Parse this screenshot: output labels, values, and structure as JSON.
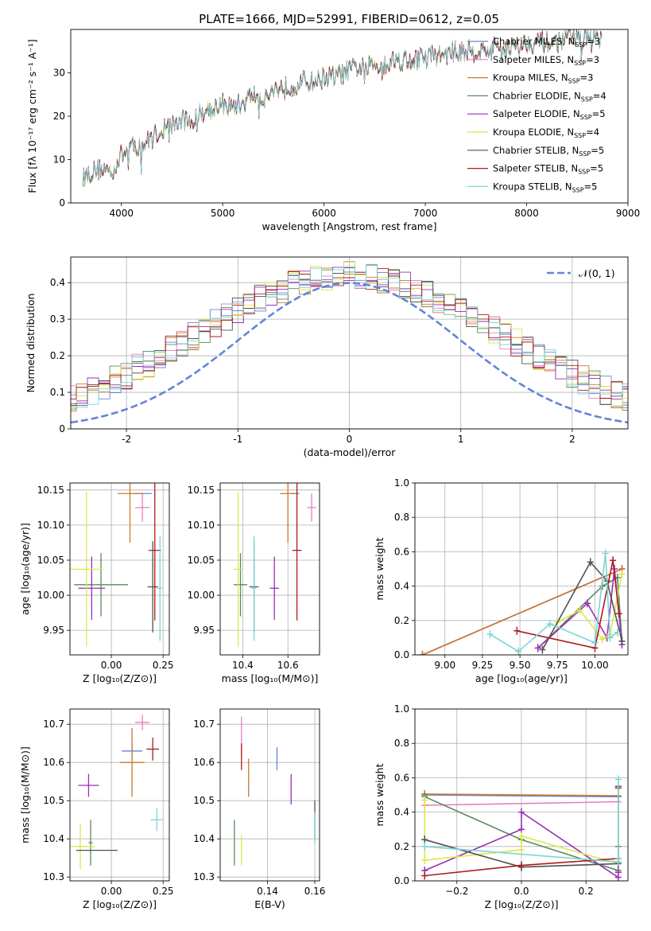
{
  "chart_data": [
    {
      "id": "spectrum",
      "type": "line",
      "title": "PLATE=1666, MJD=52991, FIBERID=0612, z=0.05",
      "xlabel": "wavelength [Angstrom, rest frame]",
      "ylabel": "Flux [fλ 10⁻¹⁷ erg cm⁻² s⁻¹ A⁻¹]",
      "xlim": [
        3500,
        9000
      ],
      "ylim": [
        0,
        40
      ],
      "xticks": [
        4000,
        5000,
        6000,
        7000,
        8000,
        9000
      ],
      "yticks": [
        0,
        10,
        20,
        30
      ],
      "legend_position": "top-right",
      "grid": false,
      "spectrum_shape": {
        "x": [
          3620,
          3700,
          3800,
          3900,
          4000,
          4100,
          4200,
          4300,
          4400,
          4500,
          4600,
          4700,
          4800,
          4900,
          5000,
          5100,
          5200,
          5300,
          5400,
          5500,
          5600,
          5700,
          5800,
          5900,
          6000,
          6100,
          6200,
          6300,
          6400,
          6500,
          6600,
          6700,
          6800,
          6900,
          7000,
          7100,
          7200,
          7300,
          7400,
          7500,
          7600,
          7700,
          7800,
          7900,
          8000,
          8100,
          8200,
          8300,
          8400,
          8500,
          8600,
          8740
        ],
        "y": [
          6,
          7,
          8,
          7,
          11,
          13,
          13,
          15,
          17,
          18,
          19,
          19,
          21,
          22,
          23,
          22,
          23,
          25,
          24,
          26,
          27,
          27,
          28,
          28,
          29,
          29,
          30,
          31,
          31,
          32,
          32,
          33,
          33,
          33,
          34,
          34,
          34,
          35,
          35,
          35,
          35,
          36,
          36,
          36,
          37,
          37,
          37,
          37,
          38,
          38,
          38,
          38
        ]
      },
      "series": [
        {
          "name": "Chabrier MILES, N",
          "sub": "SSP",
          "count": "=3",
          "color": "#6185d8"
        },
        {
          "name": "Salpeter MILES, N",
          "sub": "SSP",
          "count": "=3",
          "color": "#e87fbf"
        },
        {
          "name": "Kroupa MILES, N",
          "sub": "SSP",
          "count": "=3",
          "color": "#c87a2d"
        },
        {
          "name": "Chabrier ELODIE, N",
          "sub": "SSP",
          "count": "=4",
          "color": "#5a8a5e"
        },
        {
          "name": "Salpeter ELODIE, N",
          "sub": "SSP",
          "count": "=5",
          "color": "#9a2fb7"
        },
        {
          "name": "Kroupa ELODIE, N",
          "sub": "SSP",
          "count": "=4",
          "color": "#dde84a"
        },
        {
          "name": "Chabrier STELIB, N",
          "sub": "SSP",
          "count": "=5",
          "color": "#505050"
        },
        {
          "name": "Salpeter STELIB, N",
          "sub": "SSP",
          "count": "=5",
          "color": "#b01a1a"
        },
        {
          "name": "Kroupa STELIB, N",
          "sub": "SSP",
          "count": "=5",
          "color": "#7dd4d8"
        }
      ]
    },
    {
      "id": "residuals",
      "type": "bar",
      "xlabel": "(data-model)/error",
      "ylabel": "Normed distribution",
      "xlim": [
        -2.5,
        2.5
      ],
      "ylim": [
        0,
        0.47
      ],
      "xticks": [
        -2,
        -1,
        0,
        1,
        2
      ],
      "yticks": [
        0.0,
        0.1,
        0.2,
        0.3,
        0.4
      ],
      "grid": true,
      "legend_position": "top-right",
      "legend_label": "𝒩(0, 1)",
      "legend_color": "#6185d8",
      "bin_width": 0.1,
      "normal_mean": 0,
      "normal_sd": 1
    },
    {
      "id": "age_vs_Z",
      "type": "scatter",
      "xlabel": "Z [log₁₀(Z/Z⊙)]",
      "ylabel": "age  [log₁₀(age/yr)]",
      "xlim": [
        -0.2,
        0.28
      ],
      "ylim": [
        9.915,
        10.16
      ],
      "xticks": [
        "0.00",
        "0.25"
      ],
      "xtick_values": [
        0,
        0.25
      ],
      "yticks": [
        "9.95",
        "10.00",
        "10.05",
        "10.10",
        "10.15"
      ],
      "ytick_values": [
        9.95,
        10.0,
        10.05,
        10.1,
        10.15
      ],
      "grid": true,
      "points": [
        {
          "x": 0.15,
          "y": 10.145,
          "xerr": 0.045,
          "yerr": 0.0,
          "color": "#6185d8"
        },
        {
          "x": 0.15,
          "y": 10.125,
          "xerr": 0.035,
          "yerr": 0.02,
          "color": "#e87fbf"
        },
        {
          "x": 0.09,
          "y": 10.145,
          "xerr": 0.06,
          "yerr": 0.07,
          "color": "#c87a2d"
        },
        {
          "x": -0.05,
          "y": 10.015,
          "xerr": 0.13,
          "yerr": 0.045,
          "color": "#5a8a5e"
        },
        {
          "x": -0.095,
          "y": 10.01,
          "xerr": 0.065,
          "yerr": 0.045,
          "color": "#9a2fb7"
        },
        {
          "x": -0.12,
          "y": 10.037,
          "xerr": 0.08,
          "yerr": 0.11,
          "color": "#dde84a"
        },
        {
          "x": 0.2,
          "y": 10.012,
          "xerr": 0.025,
          "yerr": 0.065,
          "color": "#505050"
        },
        {
          "x": 0.21,
          "y": 10.064,
          "xerr": 0.03,
          "yerr": 0.1,
          "color": "#b01a1a"
        },
        {
          "x": 0.235,
          "y": 10.01,
          "xerr": 0.015,
          "yerr": 0.075,
          "color": "#7dd4d8"
        }
      ]
    },
    {
      "id": "age_vs_mass",
      "type": "scatter",
      "xlabel": "mass [log₁₀(M/M⊙)]",
      "ylabel": "",
      "xlim": [
        10.3,
        10.74
      ],
      "ylim": [
        9.915,
        10.16
      ],
      "xticks": [
        "10.4",
        "10.6"
      ],
      "xtick_values": [
        10.4,
        10.6
      ],
      "yticks": [
        "9.95",
        "10.00",
        "10.05",
        "10.10",
        "10.15"
      ],
      "ytick_values": [
        9.95,
        10.0,
        10.05,
        10.1,
        10.15
      ],
      "grid": true,
      "points": [
        {
          "x": 10.63,
          "y": 10.145,
          "xerr": 0.02,
          "yerr": 0.0,
          "color": "#6185d8"
        },
        {
          "x": 10.705,
          "y": 10.125,
          "xerr": 0.02,
          "yerr": 0.02,
          "color": "#e87fbf"
        },
        {
          "x": 10.6,
          "y": 10.145,
          "xerr": 0.035,
          "yerr": 0.07,
          "color": "#c87a2d"
        },
        {
          "x": 10.39,
          "y": 10.015,
          "xerr": 0.03,
          "yerr": 0.045,
          "color": "#5a8a5e"
        },
        {
          "x": 10.54,
          "y": 10.01,
          "xerr": 0.02,
          "yerr": 0.045,
          "color": "#9a2fb7"
        },
        {
          "x": 10.38,
          "y": 10.037,
          "xerr": 0.02,
          "yerr": 0.11,
          "color": "#dde84a"
        },
        {
          "x": 10.45,
          "y": 10.012,
          "xerr": 0.02,
          "yerr": 0.065,
          "color": "#505050"
        },
        {
          "x": 10.64,
          "y": 10.064,
          "xerr": 0.02,
          "yerr": 0.1,
          "color": "#b01a1a"
        },
        {
          "x": 10.45,
          "y": 10.01,
          "xerr": 0.01,
          "yerr": 0.075,
          "color": "#7dd4d8"
        }
      ]
    },
    {
      "id": "weight_vs_age",
      "type": "line",
      "xlabel": "age  [log₁₀(age/yr)]",
      "ylabel": "mass weight",
      "xlim": [
        8.8,
        10.22
      ],
      "ylim": [
        0,
        1.0
      ],
      "xticks": [
        "9.00",
        "9.25",
        "9.50",
        "9.75",
        "10.00"
      ],
      "xtick_values": [
        9.0,
        9.25,
        9.5,
        9.75,
        10.0
      ],
      "yticks": [
        "0.0",
        "0.2",
        "0.4",
        "0.6",
        "0.8",
        "1.0"
      ],
      "ytick_values": [
        0,
        0.2,
        0.4,
        0.6,
        0.8,
        1.0
      ],
      "grid": true,
      "series": [
        {
          "color": "#6185d8",
          "x": [
            8.85,
            10.18
          ],
          "y": [
            0.0,
            0.5
          ]
        },
        {
          "color": "#e87fbf",
          "x": [
            8.85,
            10.18
          ],
          "y": [
            0.0,
            0.5
          ]
        },
        {
          "color": "#c87a2d",
          "x": [
            8.85,
            10.18
          ],
          "y": [
            0.0,
            0.5
          ]
        },
        {
          "color": "#5a8a5e",
          "x": [
            9.62,
            10.05,
            10.15,
            10.18
          ],
          "y": [
            0.04,
            0.4,
            0.45,
            0.08
          ]
        },
        {
          "color": "#9a2fb7",
          "x": [
            9.62,
            9.95,
            10.08,
            10.13,
            10.18
          ],
          "y": [
            0.04,
            0.3,
            0.1,
            0.5,
            0.06
          ]
        },
        {
          "color": "#dde84a",
          "x": [
            9.75,
            9.9,
            10.05,
            10.1,
            10.18
          ],
          "y": [
            0.19,
            0.26,
            0.09,
            0.12,
            0.47
          ]
        },
        {
          "color": "#505050",
          "x": [
            9.65,
            9.97,
            10.08,
            10.18
          ],
          "y": [
            0.03,
            0.54,
            0.43,
            0.08
          ]
        },
        {
          "color": "#b01a1a",
          "x": [
            9.48,
            10.0,
            10.12,
            10.16
          ],
          "y": [
            0.14,
            0.04,
            0.55,
            0.24
          ]
        },
        {
          "color": "#7dd4d8",
          "x": [
            9.3,
            9.49,
            9.7,
            10.0,
            10.07,
            10.1,
            10.15
          ],
          "y": [
            0.12,
            0.02,
            0.18,
            0.07,
            0.59,
            0.1,
            0.13
          ]
        }
      ]
    },
    {
      "id": "mass_vs_Z",
      "type": "scatter",
      "xlabel": "Z [log₁₀(Z/Z⊙)]",
      "ylabel": "mass [log₁₀(M/M⊙)]",
      "xlim": [
        -0.2,
        0.28
      ],
      "ylim": [
        10.29,
        10.74
      ],
      "xticks": [
        "0.00",
        "0.25"
      ],
      "xtick_values": [
        0,
        0.25
      ],
      "yticks": [
        "10.3",
        "10.4",
        "10.5",
        "10.6",
        "10.7"
      ],
      "ytick_values": [
        10.3,
        10.4,
        10.5,
        10.6,
        10.7
      ],
      "grid": true,
      "points": [
        {
          "x": 0.1,
          "y": 10.63,
          "xerr": 0.05,
          "yerr": 0.02,
          "color": "#6185d8"
        },
        {
          "x": 0.15,
          "y": 10.705,
          "xerr": 0.035,
          "yerr": 0.02,
          "color": "#e87fbf"
        },
        {
          "x": 0.1,
          "y": 10.6,
          "xerr": 0.06,
          "yerr": 0.09,
          "color": "#c87a2d"
        },
        {
          "x": -0.1,
          "y": 10.39,
          "xerr": 0.01,
          "yerr": 0.06,
          "color": "#5a8a5e"
        },
        {
          "x": -0.11,
          "y": 10.54,
          "xerr": 0.05,
          "yerr": 0.03,
          "color": "#9a2fb7"
        },
        {
          "x": -0.15,
          "y": 10.38,
          "xerr": 0.07,
          "yerr": 0.06,
          "color": "#dde84a"
        },
        {
          "x": -0.07,
          "y": 10.37,
          "xerr": 0.1,
          "yerr": 0.0,
          "color": "#505050"
        },
        {
          "x": 0.2,
          "y": 10.635,
          "xerr": 0.03,
          "yerr": 0.03,
          "color": "#b01a1a"
        },
        {
          "x": 0.22,
          "y": 10.45,
          "xerr": 0.03,
          "yerr": 0.03,
          "color": "#7dd4d8"
        }
      ]
    },
    {
      "id": "mass_vs_ebv",
      "type": "scatter",
      "xlabel": "E(B-V)",
      "ylabel": "",
      "xlim": [
        0.12,
        0.162
      ],
      "ylim": [
        10.29,
        10.74
      ],
      "xticks": [
        "0.14",
        "0.16"
      ],
      "xtick_values": [
        0.14,
        0.16
      ],
      "yticks": [
        "10.3",
        "10.4",
        "10.5",
        "10.6",
        "10.7"
      ],
      "ytick_values": [
        10.3,
        10.4,
        10.5,
        10.6,
        10.7
      ],
      "grid": true,
      "points": [
        {
          "x": 0.144,
          "y": 10.61,
          "xerr": 0,
          "yerr": 0.03,
          "color": "#6185d8"
        },
        {
          "x": 0.129,
          "y": 10.67,
          "xerr": 0,
          "yerr": 0.05,
          "color": "#e87fbf"
        },
        {
          "x": 0.132,
          "y": 10.56,
          "xerr": 0,
          "yerr": 0.05,
          "color": "#c87a2d"
        },
        {
          "x": 0.126,
          "y": 10.39,
          "xerr": 0,
          "yerr": 0.06,
          "color": "#5a8a5e"
        },
        {
          "x": 0.15,
          "y": 10.53,
          "xerr": 0,
          "yerr": 0.04,
          "color": "#9a2fb7"
        },
        {
          "x": 0.129,
          "y": 10.37,
          "xerr": 0,
          "yerr": 0.04,
          "color": "#dde84a"
        },
        {
          "x": 0.16,
          "y": 10.45,
          "xerr": 0,
          "yerr": 0.05,
          "color": "#505050"
        },
        {
          "x": 0.129,
          "y": 10.615,
          "xerr": 0,
          "yerr": 0.035,
          "color": "#b01a1a"
        },
        {
          "x": 0.16,
          "y": 10.43,
          "xerr": 0,
          "yerr": 0.04,
          "color": "#7dd4d8"
        }
      ]
    },
    {
      "id": "weight_vs_Z",
      "type": "line",
      "xlabel": "Z [log₁₀(Z/Z⊙)]",
      "ylabel": "mass weight",
      "xlim": [
        -0.33,
        0.33
      ],
      "ylim": [
        0,
        1.0
      ],
      "xticks": [
        "−0.2",
        "0.0",
        "0.2"
      ],
      "xtick_values": [
        -0.2,
        0,
        0.2
      ],
      "yticks": [
        "0.0",
        "0.2",
        "0.4",
        "0.6",
        "0.8",
        "1.0"
      ],
      "ytick_values": [
        0,
        0.2,
        0.4,
        0.6,
        0.8,
        1.0
      ],
      "grid": true,
      "series": [
        {
          "color": "#6185d8",
          "x": [
            -0.3,
            0.3
          ],
          "y": [
            0.5,
            0.49
          ]
        },
        {
          "color": "#e87fbf",
          "x": [
            -0.3,
            0.3
          ],
          "y": [
            0.44,
            0.46
          ]
        },
        {
          "color": "#c87a2d",
          "x": [
            -0.3,
            0.3
          ],
          "y": [
            0.505,
            0.495
          ]
        },
        {
          "color": "#5a8a5e",
          "x": [
            -0.3,
            0.0,
            0.3,
            0.3
          ],
          "y": [
            0.49,
            0.24,
            0.06,
            0.2
          ]
        },
        {
          "color": "#9a2fb7",
          "x": [
            -0.3,
            0.0,
            0.0,
            0.3,
            0.3
          ],
          "y": [
            0.06,
            0.3,
            0.4,
            0.02,
            0.05
          ]
        },
        {
          "color": "#dde84a",
          "x": [
            -0.3,
            -0.3,
            0.0,
            0.0,
            0.3
          ],
          "y": [
            0.47,
            0.12,
            0.18,
            0.26,
            0.1
          ]
        },
        {
          "color": "#505050",
          "x": [
            -0.3,
            0.0,
            0.3,
            0.3
          ],
          "y": [
            0.24,
            0.08,
            0.1,
            0.55
          ]
        },
        {
          "color": "#b01a1a",
          "x": [
            -0.3,
            0.0,
            0.3,
            0.3
          ],
          "y": [
            0.03,
            0.09,
            0.13,
            0.54
          ]
        },
        {
          "color": "#7dd4d8",
          "x": [
            -0.3,
            0.3,
            0.3,
            0.3
          ],
          "y": [
            0.2,
            0.11,
            0.59,
            0.13
          ]
        }
      ]
    }
  ]
}
